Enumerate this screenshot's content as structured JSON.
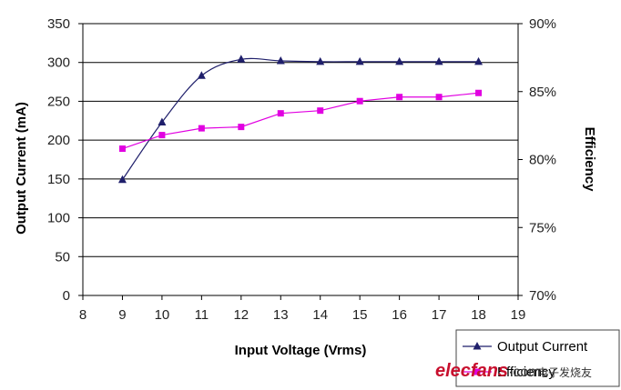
{
  "chart_data": {
    "type": "line",
    "title": "",
    "xlabel": "Input Voltage (Vrms)",
    "ylabel": "Output Current (mA)",
    "y2label": "Efficiency",
    "xlim": [
      8,
      19
    ],
    "ylim": [
      0,
      350
    ],
    "y2lim": [
      70,
      90
    ],
    "x_ticks": [
      "8",
      "9",
      "10",
      "11",
      "12",
      "13",
      "14",
      "15",
      "16",
      "17",
      "18",
      "19"
    ],
    "y_ticks": [
      "0",
      "50",
      "100",
      "150",
      "200",
      "250",
      "300",
      "350"
    ],
    "y2_ticks": [
      "70%",
      "75%",
      "80%",
      "85%",
      "90%"
    ],
    "grid": "horizontal",
    "legend_position": "bottom-right",
    "series": [
      {
        "name": "Output Current",
        "axis": "left",
        "color": "#1f1f6b",
        "marker": "triangle",
        "x": [
          9,
          10,
          11,
          12,
          13,
          14,
          15,
          16,
          17,
          18
        ],
        "values": [
          149,
          223,
          283,
          304,
          302,
          301,
          301,
          301,
          301,
          301
        ]
      },
      {
        "name": "Efficiency",
        "axis": "right",
        "color": "#e100e1",
        "marker": "square",
        "x": [
          9,
          10,
          11,
          12,
          13,
          14,
          15,
          16,
          17,
          18
        ],
        "values": [
          80.8,
          81.8,
          82.3,
          82.4,
          83.4,
          83.6,
          84.3,
          84.6,
          84.6,
          84.9
        ]
      }
    ]
  },
  "watermark": {
    "brand": "elecfans",
    "suffix": "·com",
    "chinese": "电子发烧友"
  }
}
